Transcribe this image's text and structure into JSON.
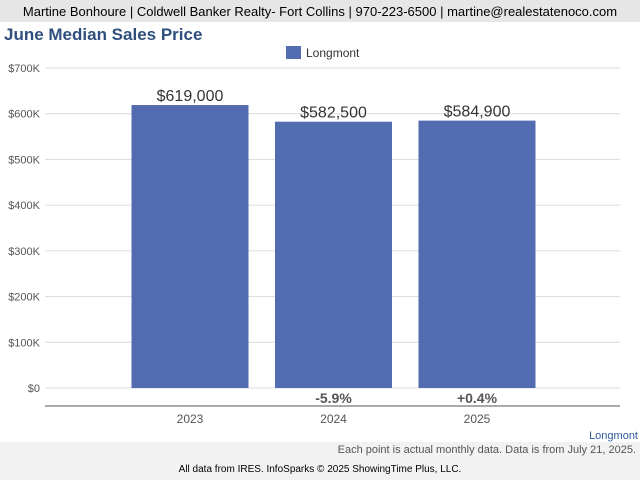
{
  "header": {
    "contact": "Martine Bonhoure | Coldwell Banker Realty- Fort Collins | 970-223-6500 | martine@realestatenoco.com"
  },
  "chart_data": {
    "type": "bar",
    "title": "June Median Sales Price",
    "categories": [
      "2023",
      "2024",
      "2025"
    ],
    "series": [
      {
        "name": "Longmont",
        "values": [
          619000,
          582500,
          584900
        ],
        "value_labels": [
          "$619,000",
          "$582,500",
          "$584,900"
        ],
        "change_labels": [
          "",
          "-5.9%",
          "+0.4%"
        ],
        "color": "#536bb0"
      }
    ],
    "ylim": [
      0,
      700000
    ],
    "y_ticks": [
      0,
      100000,
      200000,
      300000,
      400000,
      500000,
      600000,
      700000
    ],
    "y_tick_labels": [
      "$0",
      "$100K",
      "$200K",
      "$300K",
      "$400K",
      "$500K",
      "$600K",
      "$700K"
    ],
    "xlabel": "",
    "ylabel": "",
    "grid": true,
    "legend_position": "top-center",
    "corner_label": "Longmont"
  },
  "footer": {
    "note": "Each point is actual monthly data. Data is from July 21, 2025.",
    "source": "All data from IRES. InfoSparks © 2025 ShowingTime Plus, LLC."
  }
}
